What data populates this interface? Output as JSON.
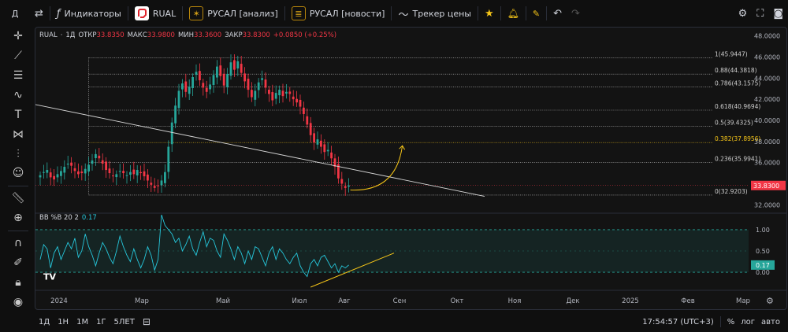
{
  "topbar": {
    "account_letter": "Д",
    "indicators_label": "Индикаторы",
    "symbol": "RUAL",
    "analysis_label": "РУСАЛ [анализ]",
    "news_label": "РУСАЛ [новости]",
    "tracker_label": "Трекер цены"
  },
  "legend": {
    "symbol": "RUAL",
    "interval": "1Д",
    "open_label": "ОТКР",
    "open": "33.8350",
    "high_label": "МАКС",
    "high": "33.9800",
    "low_label": "МИН",
    "low": "33.3600",
    "close_label": "ЗАКР",
    "close": "33.8300",
    "change": "+0.0850 (+0.25%)"
  },
  "indicator_legend": {
    "name": "BB %B 20 2",
    "value": "0.17"
  },
  "price_axis": {
    "ticks": [
      "48.0000",
      "46.0000",
      "44.0000",
      "42.0000",
      "40.0000",
      "38.0000",
      "36.0000",
      "34.0000",
      "32.0000"
    ],
    "current_price": "33.8300",
    "current_color": "#f23645"
  },
  "indicator_axis": {
    "ticks": [
      "1.00",
      "0.50",
      "0.00"
    ],
    "current_value": "0.17"
  },
  "fib_levels": [
    {
      "label": "1(45.9447)",
      "price": 45.9447,
      "color": "#cfcfcf"
    },
    {
      "label": "0.88(44.3818)",
      "price": 44.3818,
      "color": "#cfcfcf"
    },
    {
      "label": "0.786(43.1575)",
      "price": 43.1575,
      "color": "#cfcfcf"
    },
    {
      "label": "0.618(40.9694)",
      "price": 40.9694,
      "color": "#cfcfcf"
    },
    {
      "label": "0.5(39.4325)",
      "price": 39.4325,
      "color": "#cfcfcf"
    },
    {
      "label": "0.382(37.8956)",
      "price": 37.8956,
      "color": "#f5c518"
    },
    {
      "label": "0.236(35.9941)",
      "price": 35.9941,
      "color": "#cfcfcf"
    },
    {
      "label": "0(32.9203)",
      "price": 32.9203,
      "color": "#cfcfcf"
    }
  ],
  "time_axis": [
    "2024",
    "Мар",
    "Май",
    "Июл",
    "Авг",
    "Сен",
    "Окт",
    "Ноя",
    "Дек",
    "2025",
    "Фев",
    "Мар"
  ],
  "bottombar": {
    "ranges": [
      "1Д",
      "1Н",
      "1М",
      "1Г",
      "5ЛЕТ"
    ],
    "clock": "17:54:57 (UTC+3)",
    "percent_label": "%",
    "log_label": "лог",
    "auto_label": "авто"
  },
  "colors": {
    "up": "#26a69a",
    "down": "#f23645",
    "accent": "#f5c518",
    "indicator": "#26c6da"
  },
  "chart_data": {
    "type": "candlestick",
    "close_series": [
      34.8,
      35.1,
      35.3,
      34.6,
      34.4,
      34.9,
      35.2,
      35.6,
      35.9,
      35.7,
      35.2,
      34.9,
      35.0,
      35.4,
      35.8,
      36.2,
      36.8,
      36.4,
      35.9,
      35.3,
      35.0,
      34.7,
      34.9,
      35.2,
      35.0,
      34.8,
      35.1,
      34.9,
      35.3,
      35.0,
      34.7,
      34.3,
      33.9,
      33.6,
      33.8,
      34.3,
      35.1,
      37.5,
      39.8,
      41.4,
      42.8,
      43.5,
      42.7,
      43.2,
      44.1,
      44.6,
      43.8,
      43.1,
      42.7,
      43.4,
      44.3,
      45.1,
      44.2,
      43.3,
      44.4,
      45.5,
      44.8,
      45.6,
      44.5,
      43.7,
      42.9,
      42.2,
      42.8,
      43.6,
      44.0,
      43.1,
      42.5,
      41.9,
      42.6,
      42.9,
      42.3,
      42.7,
      42.5,
      42.0,
      41.7,
      41.3,
      40.6,
      39.6,
      38.6,
      37.9,
      38.2,
      37.5,
      37.0,
      37.2,
      36.4,
      35.6,
      34.5,
      34.0,
      33.6,
      33.83
    ],
    "bb_percent_b": [
      0.3,
      0.65,
      0.55,
      0.1,
      0.45,
      0.6,
      0.3,
      0.5,
      0.7,
      0.55,
      0.8,
      0.35,
      0.5,
      0.9,
      0.6,
      0.4,
      0.15,
      0.45,
      0.7,
      0.55,
      0.35,
      0.2,
      0.5,
      0.85,
      0.6,
      0.4,
      0.25,
      0.55,
      0.3,
      0.1,
      0.3,
      0.6,
      0.4,
      0.05,
      0.3,
      1.35,
      1.1,
      1.0,
      0.9,
      0.7,
      0.8,
      0.5,
      0.65,
      0.85,
      0.55,
      0.4,
      0.7,
      0.95,
      0.6,
      0.8,
      0.75,
      0.5,
      0.35,
      0.9,
      0.75,
      0.55,
      0.3,
      0.6,
      0.45,
      0.2,
      0.5,
      0.3,
      0.6,
      0.55,
      0.35,
      0.15,
      0.45,
      0.6,
      0.3,
      0.55,
      0.45,
      0.3,
      0.2,
      0.35,
      0.45,
      0.15,
      0.0,
      -0.1,
      0.2,
      0.3,
      0.15,
      0.35,
      0.4,
      0.25,
      0.1,
      0.2,
      0.0,
      0.15,
      0.1,
      0.17
    ],
    "ylim": [
      31.5,
      48.5
    ],
    "indicator_ylim": [
      -0.35,
      1.35
    ]
  }
}
